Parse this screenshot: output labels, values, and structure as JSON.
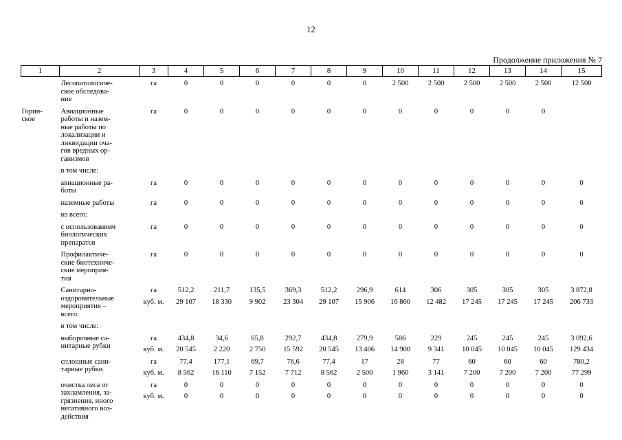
{
  "page": {
    "number": "12",
    "continuation": "Продолжение приложения № 7"
  },
  "table": {
    "header": [
      "1",
      "2",
      "3",
      "4",
      "5",
      "6",
      "7",
      "8",
      "9",
      "10",
      "11",
      "12",
      "13",
      "14",
      "15"
    ],
    "rows": [
      {
        "region": "",
        "name": "Лесопатологиче-\nское обследова-\nние",
        "lines": [
          {
            "unit": "га",
            "values": [
              "0",
              "0",
              "0",
              "0",
              "0",
              "0",
              "2 500",
              "2 500",
              "2 500",
              "2 500",
              "2 500",
              "12 500"
            ]
          }
        ]
      },
      {
        "region": "Горин-\nское",
        "name": "Авиационные\nработы и назем-\nные работы по\nлокализации и\nликвидации оча-\nгов вредных ор-\nганизмов",
        "lines": [
          {
            "unit": "га",
            "values": [
              "0",
              "0",
              "0",
              "0",
              "0",
              "0",
              "0",
              "0",
              "0",
              "0",
              "0",
              ""
            ]
          }
        ]
      },
      {
        "region": "",
        "name": "в том числе:",
        "lines": []
      },
      {
        "region": "",
        "name": "авиационные ра-\nботы",
        "lines": [
          {
            "unit": "га",
            "values": [
              "0",
              "0",
              "0",
              "0",
              "0",
              "0",
              "0",
              "0",
              "0",
              "0",
              "0",
              "0"
            ]
          }
        ]
      },
      {
        "region": "",
        "name": "наземные работы",
        "lines": [
          {
            "unit": "га",
            "values": [
              "0",
              "0",
              "0",
              "0",
              "0",
              "0",
              "0",
              "0",
              "0",
              "0",
              "0",
              "0"
            ]
          }
        ]
      },
      {
        "region": "",
        "name": "из всего:",
        "lines": []
      },
      {
        "region": "",
        "name": "с использованием\nбиологических\nпрепаратов",
        "lines": [
          {
            "unit": "га",
            "values": [
              "0",
              "0",
              "0",
              "0",
              "0",
              "0",
              "0",
              "0",
              "0",
              "0",
              "0",
              "0"
            ]
          }
        ]
      },
      {
        "region": "",
        "name": "Профилактиче-\nские биотехниче-\nские мероприя-\nтия",
        "lines": [
          {
            "unit": "га",
            "values": [
              "0",
              "0",
              "0",
              "0",
              "0",
              "0",
              "0",
              "0",
              "0",
              "0",
              "0",
              "0"
            ]
          }
        ]
      },
      {
        "region": "",
        "name": "Санитарно-\nоздоровительные\nмероприятия  –\nвсего:",
        "lines": [
          {
            "unit": "га",
            "values": [
              "512,2",
              "211,7",
              "135,5",
              "369,3",
              "512,2",
              "296,9",
              "614",
              "306",
              "305",
              "305",
              "305",
              "3 872,8"
            ]
          },
          {
            "unit": "куб. м.",
            "values": [
              "29 107",
              "18 330",
              "9 902",
              "23 304",
              "29 107",
              "15 906",
              "16 860",
              "12 482",
              "17 245",
              "17 245",
              "17 245",
              "206 733"
            ]
          }
        ]
      },
      {
        "region": "",
        "name": "в том числе:",
        "lines": []
      },
      {
        "region": "",
        "name": "выборочные  са-\nнитарные рубки",
        "lines": [
          {
            "unit": "га",
            "values": [
              "434,8",
              "34,6",
              "65,8",
              "292,7",
              "434,8",
              "279,9",
              "586",
              "229",
              "245",
              "245",
              "245",
              "3 092,6"
            ]
          },
          {
            "unit": "куб. м.",
            "values": [
              "20 545",
              "2 220",
              "2 750",
              "15 592",
              "20 545",
              "13 406",
              "14 900",
              "9 341",
              "10 045",
              "10 045",
              "10 045",
              "129 434"
            ]
          }
        ]
      },
      {
        "region": "",
        "name": "сплошные  сани-\nтарные рубки",
        "lines": [
          {
            "unit": "га",
            "values": [
              "77,4",
              "177,1",
              "69,7",
              "76,6",
              "77,4",
              "17",
              "28",
              "77",
              "60",
              "60",
              "60",
              "780,2"
            ]
          },
          {
            "unit": "куб. м.",
            "values": [
              "8 562",
              "16 110",
              "7 152",
              "7 712",
              "8 562",
              "2 500",
              "1 960",
              "3 141",
              "7 200",
              "7 200",
              "7 200",
              "77 299"
            ]
          }
        ]
      },
      {
        "region": "",
        "name": "очистка  леса  от\nзахламления,  за-\nгрязнения,  иного\nнегативного  воз-\nдействия",
        "lines": [
          {
            "unit": "га",
            "values": [
              "0",
              "0",
              "0",
              "0",
              "0",
              "0",
              "0",
              "0",
              "0",
              "0",
              "0",
              "0"
            ]
          },
          {
            "unit": "куб. м.",
            "values": [
              "0",
              "0",
              "0",
              "0",
              "0",
              "0",
              "0",
              "0",
              "0",
              "0",
              "0",
              "0"
            ]
          }
        ]
      }
    ]
  }
}
